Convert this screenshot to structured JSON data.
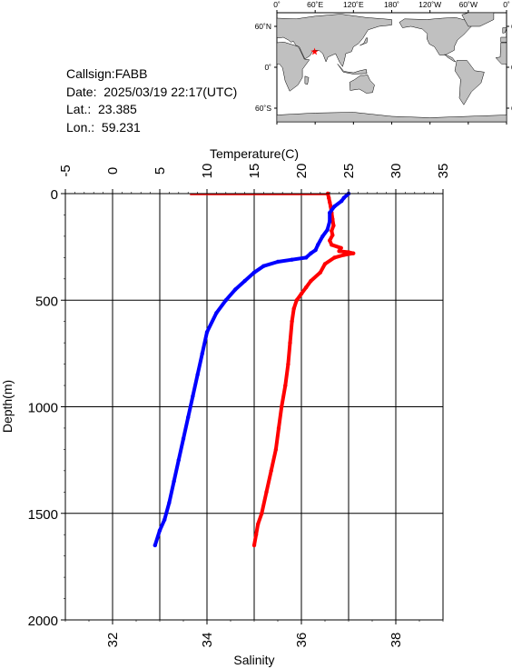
{
  "station": {
    "callsign_label": "Callsign:FABB",
    "date_label": "Date:  2025/03/19 22:17(UTC)",
    "lat_label": "Lat.:  23.385",
    "lon_label": "Lon.:  59.231"
  },
  "map": {
    "top_lon_labels": [
      "0˚",
      "60˚E",
      "120˚E",
      "180˚",
      "120˚W",
      "60˚W",
      "0˚"
    ],
    "lat_labels": [
      "60˚N",
      "0˚",
      "60˚S"
    ],
    "marker": {
      "lon": 59.231,
      "lat": 23.385
    },
    "marker_color": "#ff0000",
    "land_color": "#c0c0c0",
    "ocean_color": "#ffffff"
  },
  "chart_data": {
    "type": "line",
    "ylabel": "Depth(m)",
    "ylim": [
      2000,
      0
    ],
    "yticks": [
      "0",
      "500",
      "1000",
      "1500",
      "2000"
    ],
    "temperature_axis": {
      "label": "Temperature(C)",
      "lim": [
        -5,
        35
      ],
      "ticks": [
        "-5",
        "0",
        "5",
        "10",
        "15",
        "20",
        "25",
        "30",
        "35"
      ]
    },
    "salinity_axis": {
      "label": "Salinity",
      "lim": [
        31,
        39
      ],
      "ticks": [
        "32",
        "34",
        "36",
        "38"
      ]
    },
    "grid": true,
    "series": [
      {
        "axis": "temperature",
        "color": "#ff0000",
        "points": [
          [
            22.8,
            0
          ],
          [
            22.9,
            20
          ],
          [
            23.0,
            40
          ],
          [
            23.1,
            60
          ],
          [
            23.2,
            90
          ],
          [
            23.3,
            120
          ],
          [
            23.4,
            150
          ],
          [
            23.2,
            175
          ],
          [
            23.3,
            195
          ],
          [
            23.0,
            220
          ],
          [
            23.2,
            240
          ],
          [
            24.2,
            255
          ],
          [
            24.0,
            270
          ],
          [
            25.0,
            275
          ],
          [
            25.5,
            280
          ],
          [
            24.5,
            288
          ],
          [
            23.5,
            300
          ],
          [
            22.5,
            330
          ],
          [
            22.0,
            370
          ],
          [
            21.0,
            410
          ],
          [
            20.5,
            440
          ],
          [
            20.0,
            470
          ],
          [
            19.5,
            500
          ],
          [
            19.2,
            540
          ],
          [
            19.0,
            600
          ],
          [
            18.8,
            700
          ],
          [
            18.6,
            800
          ],
          [
            18.3,
            900
          ],
          [
            17.9,
            1000
          ],
          [
            17.6,
            1100
          ],
          [
            17.3,
            1200
          ],
          [
            16.8,
            1300
          ],
          [
            16.3,
            1400
          ],
          [
            15.8,
            1500
          ],
          [
            15.4,
            1550
          ],
          [
            15.2,
            1600
          ],
          [
            15.0,
            1650
          ]
        ]
      },
      {
        "axis": "salinity",
        "color": "#0000ff",
        "points": [
          [
            37.0,
            0
          ],
          [
            36.9,
            20
          ],
          [
            36.85,
            35
          ],
          [
            36.7,
            60
          ],
          [
            36.6,
            90
          ],
          [
            36.6,
            130
          ],
          [
            36.55,
            170
          ],
          [
            36.45,
            200
          ],
          [
            36.35,
            240
          ],
          [
            36.3,
            265
          ],
          [
            36.2,
            280
          ],
          [
            36.1,
            300
          ],
          [
            35.8,
            310
          ],
          [
            35.5,
            320
          ],
          [
            35.2,
            340
          ],
          [
            35.0,
            370
          ],
          [
            34.8,
            410
          ],
          [
            34.6,
            450
          ],
          [
            34.4,
            500
          ],
          [
            34.2,
            560
          ],
          [
            34.0,
            650
          ],
          [
            33.9,
            750
          ],
          [
            33.8,
            850
          ],
          [
            33.7,
            950
          ],
          [
            33.6,
            1050
          ],
          [
            33.5,
            1150
          ],
          [
            33.4,
            1250
          ],
          [
            33.3,
            1350
          ],
          [
            33.2,
            1450
          ],
          [
            33.1,
            1530
          ],
          [
            33.0,
            1580
          ],
          [
            32.9,
            1650
          ]
        ]
      }
    ],
    "surface_flag": {
      "temperature_start": 8.2,
      "temperature_end": 22.8,
      "depth": 0
    }
  }
}
